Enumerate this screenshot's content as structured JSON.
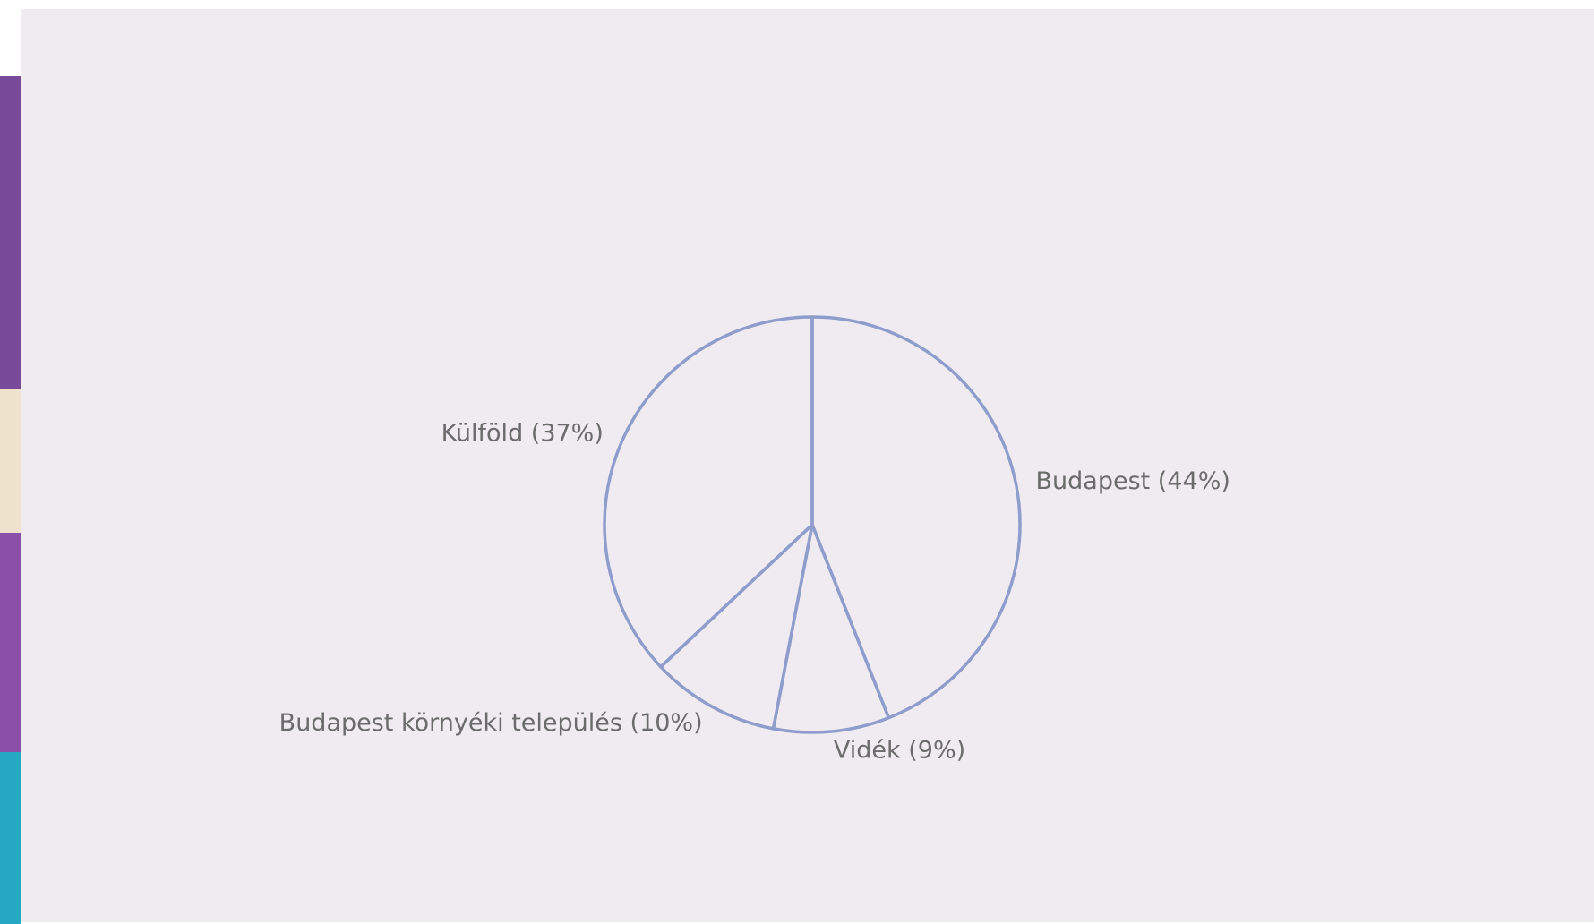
{
  "chart_data": {
    "type": "pie",
    "categories": [
      "Budapest (44%)",
      "Vidék (9%)",
      "Budapest környéki település (10%)",
      "Külföld (37%)"
    ],
    "values": [
      44,
      9,
      10,
      37
    ],
    "color": "#8f9dcc"
  }
}
